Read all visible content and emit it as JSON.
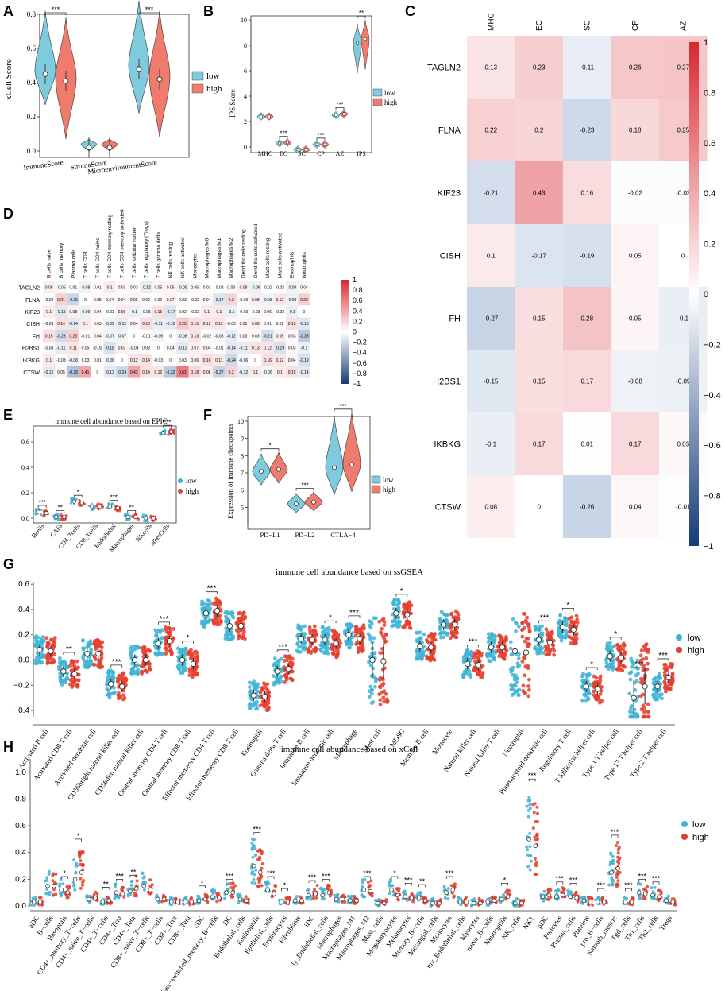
{
  "colors": {
    "low": "#7fcadc",
    "high": "#ef7b6c",
    "low_dot": "#3fb4d4",
    "high_dot": "#e4402f",
    "neg": "#2c5fa0",
    "pos": "#d9282f"
  },
  "panels": {
    "A": "A",
    "B": "B",
    "C": "C",
    "D": "D",
    "E": "E",
    "F": "F",
    "G": "G",
    "H": "H"
  },
  "legend": {
    "low": "low",
    "high": "high"
  },
  "chart_data": [
    {
      "id": "A",
      "type": "violin",
      "title": "",
      "xlabel": "",
      "ylabel": "xCell Score",
      "ylim": [
        0,
        0.8
      ],
      "yticks": [
        "0.0",
        "0.2",
        "0.4",
        "0.6",
        "0.8"
      ],
      "categories": [
        "ImmuneScore",
        "StromaScore",
        "MicroenvironmentScore"
      ],
      "series": [
        {
          "name": "low",
          "median": [
            0.45,
            0.02,
            0.48
          ],
          "max": [
            0.82,
            0.07,
            0.88
          ],
          "min": [
            0.27,
            0.0,
            0.22
          ]
        },
        {
          "name": "high",
          "median": [
            0.41,
            0.02,
            0.42
          ],
          "max": [
            0.78,
            0.07,
            0.82
          ],
          "min": [
            0.07,
            0.0,
            0.08
          ]
        }
      ],
      "significance": [
        "***",
        "",
        "***"
      ]
    },
    {
      "id": "B",
      "type": "violin",
      "title": "",
      "xlabel": "",
      "ylabel": "IPS Score",
      "ylim": [
        0,
        10
      ],
      "yticks": [
        "0",
        "2",
        "4",
        "6",
        "8",
        "10"
      ],
      "categories": [
        "MHC",
        "EC",
        "SC",
        "CP",
        "AZ",
        "IPS"
      ],
      "series": [
        {
          "name": "low",
          "median": [
            2.4,
            0.3,
            -0.2,
            0.2,
            2.5,
            8.2
          ]
        },
        {
          "name": "high",
          "median": [
            2.4,
            0.35,
            -0.2,
            0.2,
            2.6,
            8.5
          ]
        }
      ],
      "significance": [
        "",
        "***",
        "",
        "***",
        "***",
        "**"
      ]
    },
    {
      "id": "C",
      "type": "heatmap",
      "columns": [
        "MHC",
        "EC",
        "SC",
        "CP",
        "AZ"
      ],
      "rows": [
        "TAGLN2",
        "FLNA",
        "KIF23",
        "CISH",
        "FH",
        "H2BS1",
        "IKBKG",
        "CTSW"
      ],
      "values": [
        [
          0.13,
          0.23,
          -0.11,
          0.26,
          0.27
        ],
        [
          0.22,
          0.2,
          -0.23,
          0.18,
          0.25
        ],
        [
          -0.21,
          0.43,
          0.16,
          -0.02,
          -0.02
        ],
        [
          0.1,
          -0.17,
          -0.19,
          0.05,
          0
        ],
        [
          -0.27,
          0.15,
          0.28,
          0.05,
          -0.1
        ],
        [
          -0.15,
          0.15,
          0.17,
          -0.08,
          -0.09
        ],
        [
          -0.1,
          0.17,
          0.01,
          0.17,
          0.03
        ],
        [
          0.08,
          0,
          -0.26,
          0.04,
          -0.01
        ]
      ],
      "colorbar": [
        "1",
        "0.8",
        "0.6",
        "0.4",
        "0.2",
        "0",
        "-0.2",
        "-0.4",
        "-0.6",
        "-0.8",
        "-1"
      ]
    },
    {
      "id": "D",
      "type": "heatmap",
      "columns": [
        "B cells naive",
        "B cells memory",
        "Plasma cells",
        "T cells CD8",
        "T cells CD4 naive",
        "T cells CD4 memory resting",
        "T cells CD4 memory activated",
        "T cells follicular helper",
        "T cells regulatory (Tregs)",
        "T cells gamma delta",
        "NK cells resting",
        "NK cells activated",
        "Monocytes",
        "Macrophages M0",
        "Macrophages M1",
        "Macrophages M2",
        "Dendritic cells resting",
        "Dendritic cells activated",
        "Mast cells resting",
        "Mast cells activated",
        "Eosinophils",
        "Neutrophils"
      ],
      "rows": [
        "TAGLN2",
        "FLNA",
        "KIF23",
        "CISH",
        "FH",
        "H2BS1",
        "IKBKG",
        "CTSW"
      ],
      "values": [
        [
          0.08,
          -0.05,
          0.01,
          -0.08,
          0.01,
          0.1,
          0.03,
          0.03,
          -0.12,
          0.05,
          0.05,
          -0.09,
          0.05,
          0.01,
          -0.02,
          0.03,
          0.08,
          -0.09,
          -0.02,
          -0.02,
          -0.08,
          0.04
        ],
        [
          -0.02,
          0.21,
          -0.25,
          0,
          0.05,
          0.04,
          0.04,
          0.06,
          0.02,
          0.02,
          0.07,
          0.03,
          -0.02,
          0.04,
          -0.17,
          0.2,
          -0.03,
          0.08,
          -0.08,
          0.12,
          -0.09,
          0.22
        ],
        [
          0.1,
          -0.15,
          0.08,
          -0.09,
          0.04,
          -0.01,
          0.09,
          -0.1,
          -0.05,
          0.15,
          -0.17,
          0.02,
          -0.02,
          0.1,
          0.1,
          -0.1,
          -0.03,
          -0.03,
          0.06,
          -0.02,
          -0.1,
          0
        ],
        [
          -0.03,
          0.14,
          -0.14,
          0.1,
          0.03,
          -0.09,
          -0.12,
          0.04,
          0.16,
          -0.11,
          -0.12,
          0.25,
          0.15,
          0.12,
          0.12,
          -0.03,
          0.05,
          0.08,
          0.01,
          0.01,
          0.15,
          -0.15
        ],
        [
          0.15,
          -0.23,
          0.23,
          -0.01,
          0.04,
          -0.07,
          -0.07,
          0,
          -0.01,
          -0.06,
          0,
          -0.08,
          0.13,
          -0.02,
          -0.06,
          -0.12,
          0.03,
          0.03,
          -0.21,
          0.08,
          0.03,
          -0.33
        ],
        [
          -0.04,
          -0.11,
          0.11,
          0.05,
          -0.02,
          -0.18,
          0.07,
          -0.04,
          0.03,
          0,
          0.04,
          -0.13,
          0.07,
          0.04,
          -0.01,
          -0.14,
          -0.11,
          0.13,
          0.12,
          -0.19,
          0.03,
          -0.1
        ],
        [
          0.1,
          -0.03,
          -0.08,
          0.03,
          0.01,
          -0.06,
          0,
          0.12,
          0.14,
          -0.03,
          0,
          0.03,
          0.06,
          0.16,
          0.11,
          -0.24,
          -0.06,
          0,
          0.16,
          0.12,
          0.04,
          -0.19
        ],
        [
          -0.12,
          0.05,
          -0.38,
          0.41,
          0,
          -0.13,
          -0.24,
          0.42,
          0.14,
          0.12,
          -0.32,
          0.61,
          0.18,
          0.08,
          -0.27,
          0.2,
          -0.12,
          0.1,
          -0.06,
          0.1,
          0.15,
          -0.14
        ]
      ],
      "colorbar": [
        "1",
        "0.8",
        "0.6",
        "0.4",
        "0.2",
        "0",
        "-0.2",
        "-0.4",
        "-0.6",
        "-0.8",
        "-1"
      ]
    },
    {
      "id": "E",
      "type": "box",
      "title": "immune cell abundance based on EPIC",
      "ylim": [
        0,
        0.7
      ],
      "yticks": [
        "0.0",
        "0.2",
        "0.4",
        "0.6"
      ],
      "categories": [
        "Bcells",
        "CAFs",
        "CD4_Tcells",
        "CD8_Tcells",
        "Endothelial",
        "Macrophages",
        "NKcells",
        "otherCells"
      ],
      "series": [
        {
          "name": "low",
          "median": [
            0.05,
            0.01,
            0.13,
            0.09,
            0.09,
            0.01,
            0.0,
            0.67
          ]
        },
        {
          "name": "high",
          "median": [
            0.04,
            0.01,
            0.12,
            0.09,
            0.08,
            0.01,
            0.0,
            0.68
          ]
        }
      ],
      "significance": [
        "***",
        "**",
        "*",
        "",
        "***",
        "**",
        "",
        "***"
      ]
    },
    {
      "id": "F",
      "type": "violin",
      "title": "",
      "ylabel": "Expression of immune checkpoints",
      "ylim": [
        4,
        10
      ],
      "yticks": [
        "5",
        "6",
        "7",
        "8",
        "9",
        "10"
      ],
      "categories": [
        "PD−L1",
        "PD−L2",
        "CTLA−4"
      ],
      "series": [
        {
          "name": "low",
          "median": [
            7.1,
            5.2,
            7.3
          ]
        },
        {
          "name": "high",
          "median": [
            7.2,
            5.3,
            7.5
          ]
        }
      ],
      "significance": [
        "*",
        "***",
        "***"
      ]
    },
    {
      "id": "G",
      "type": "box",
      "title": "immune cell abundance based on ssGSEA",
      "ylim": [
        -0.45,
        0.62
      ],
      "yticks": [
        "0.6",
        "0.4",
        "0.2",
        "0.0",
        "−0.2",
        "−0.4"
      ],
      "categories": [
        "Activated B cell",
        "Activated CD8 T cell",
        "Activated dendritic cell",
        "CD56bright natural killer cell",
        "CD56dim natural killer cell",
        "Central memory CD4 T cell",
        "Central memory CD8 T cell",
        "Effector memeory CD4 T cell",
        "Effector memeory CD8 T cell",
        "Eosinophil",
        "Gamma delta T cell",
        "Immature B cell",
        "Immature dendritic cell",
        "Macrophage",
        "Mast cell",
        "MDSC",
        "Memory B cell",
        "Monocyte",
        "Natural killer cell",
        "Natural killer T cell",
        "Neutrophil",
        "Plasmacytoid dendritic cell",
        "Regulatory T cell",
        "T follicular helper cell",
        "Type 1 T helper cell",
        "Type 17 T helper cell",
        "Type 2 T helper cell"
      ],
      "series": [
        {
          "name": "low",
          "median": [
            0.08,
            -0.09,
            0.05,
            -0.19,
            0.0,
            0.13,
            0.0,
            0.37,
            0.27,
            -0.28,
            -0.09,
            0.17,
            0.16,
            0.2,
            0.0,
            0.37,
            0.11,
            0.28,
            -0.03,
            0.1,
            0.07,
            0.16,
            0.26,
            -0.21,
            0.03,
            -0.3,
            -0.21
          ]
        },
        {
          "name": "high",
          "median": [
            0.07,
            -0.11,
            0.05,
            -0.21,
            0.0,
            0.15,
            -0.03,
            0.39,
            0.27,
            -0.29,
            -0.07,
            0.16,
            0.13,
            0.17,
            -0.01,
            0.36,
            0.1,
            0.28,
            -0.04,
            0.1,
            0.06,
            0.14,
            0.24,
            -0.23,
            0.02,
            -0.21,
            -0.14
          ]
        }
      ],
      "significance": [
        "",
        "**",
        "",
        "***",
        "",
        "***",
        "*",
        "***",
        "",
        "",
        "***",
        "",
        "*",
        "***",
        "",
        "*",
        "",
        "",
        "***",
        "",
        "",
        "***",
        "*",
        "*",
        "*",
        "***",
        "***"
      ]
    },
    {
      "id": "H",
      "type": "box",
      "title": "immune cell abundance based on xCell",
      "ylim": [
        0,
        1.1
      ],
      "yticks": [
        "1.0",
        "0.8",
        "0.6",
        "0.4",
        "0.2",
        "0.0"
      ],
      "categories": [
        "aDC",
        "B−cells",
        "Basophils",
        "CD4+_memory_T−cells",
        "CD4+_naive_T−cells",
        "CD4+_T−cells",
        "CD4+_Tcm",
        "CD4+_Tem",
        "CD8+_naive_T−cells",
        "CD8+_T−cells",
        "CD8+_Tcm",
        "CD8+_Tem",
        "cDC",
        "Class−switched_memory_B−cells",
        "DC",
        "Endothelial_cells",
        "Eosinophils",
        "Epithelial_cells",
        "Erythrocytes",
        "Fibroblasts",
        "iDC",
        "ly_Endothelial_cells",
        "Macrophages",
        "Macrophages_M1",
        "Macrophages_M2",
        "Mast_cells",
        "Megakaryocytes",
        "Melanocytes",
        "Memory_B−cells",
        "Mesangial_cells",
        "Monocytes",
        "mv_Endothelial_cells",
        "Myocytes",
        "naive_B−cells",
        "Neutrophils",
        "NK_cells",
        "NKT",
        "pDC",
        "Pericytes",
        "Plasma_cells",
        "Platelets",
        "pro_B−cells",
        "Smooth_muscle",
        "Tgd_cells",
        "Th1_cells",
        "Th2_cells",
        "Tregs"
      ],
      "series": [
        {
          "name": "low",
          "median": [
            0.03,
            0.15,
            0.12,
            0.2,
            0.05,
            0.03,
            0.1,
            0.11,
            0.15,
            0.05,
            0.03,
            0.03,
            0.04,
            0.07,
            0.1,
            0.05,
            0.3,
            0.12,
            0.03,
            0.04,
            0.08,
            0.08,
            0.05,
            0.04,
            0.12,
            0.02,
            0.12,
            0.07,
            0.06,
            0.02,
            0.1,
            0.03,
            0.02,
            0.03,
            0.05,
            0.02,
            0.5,
            0.07,
            0.07,
            0.07,
            0.04,
            0.03,
            0.25,
            0.03,
            0.1,
            0.08,
            0.04
          ]
        },
        {
          "name": "high",
          "median": [
            0.03,
            0.15,
            0.1,
            0.25,
            0.06,
            0.04,
            0.09,
            0.13,
            0.12,
            0.05,
            0.03,
            0.03,
            0.05,
            0.06,
            0.1,
            0.04,
            0.25,
            0.09,
            0.03,
            0.04,
            0.09,
            0.1,
            0.05,
            0.04,
            0.11,
            0.02,
            0.08,
            0.06,
            0.04,
            0.02,
            0.12,
            0.03,
            0.02,
            0.04,
            0.07,
            0.02,
            0.45,
            0.08,
            0.08,
            0.06,
            0.03,
            0.03,
            0.28,
            0.03,
            0.09,
            0.07,
            0.03
          ]
        }
      ],
      "significance": [
        "",
        "",
        "*",
        "*",
        "",
        "**",
        "***",
        "**",
        "",
        "",
        "",
        "",
        "*",
        "",
        "***",
        "",
        "***",
        "***",
        "*",
        "",
        "***",
        "***",
        "",
        "",
        "***",
        "",
        "*",
        "***",
        "**",
        "",
        "***",
        "",
        "",
        "",
        "*",
        "",
        "***",
        "",
        "***",
        "***",
        "",
        "***",
        "***",
        "***",
        "***",
        "***",
        ""
      ]
    }
  ]
}
